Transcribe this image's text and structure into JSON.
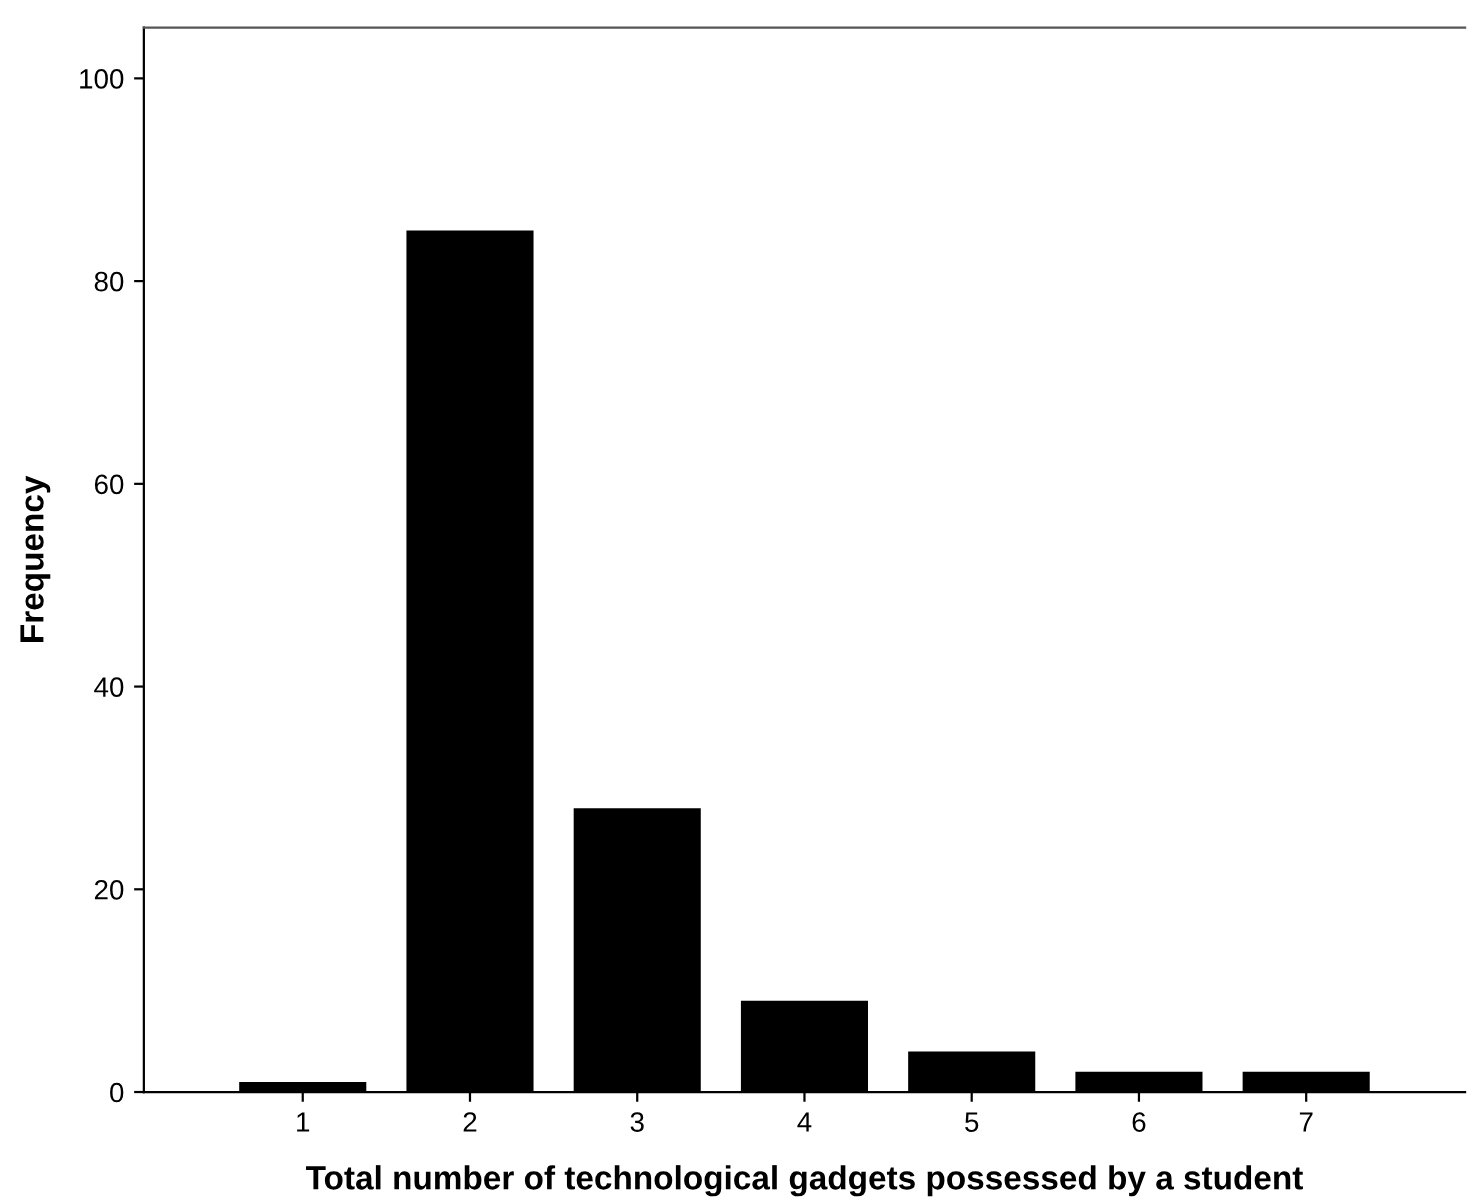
{
  "chart_data": {
    "type": "bar",
    "xlabel": "Total number of technological gadgets possessed by a student",
    "ylabel": "Frequency",
    "categories": [
      "1",
      "2",
      "3",
      "4",
      "5",
      "6",
      "7"
    ],
    "values": [
      1,
      85,
      28,
      9,
      4,
      2,
      2
    ],
    "color": "#000000",
    "ylim": [
      0,
      105
    ],
    "yticks": [
      0,
      20,
      40,
      60,
      80,
      100
    ],
    "grid": false
  }
}
